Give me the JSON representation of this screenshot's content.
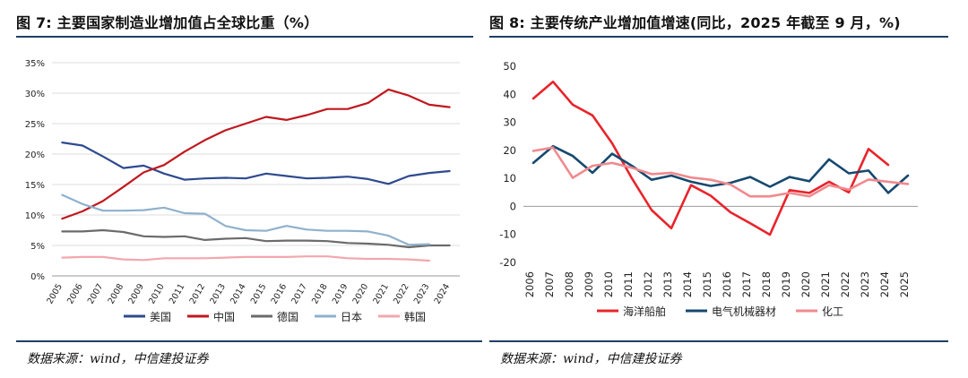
{
  "left": {
    "title": "图 7:  主要国家制造业增加值占全球比重（%）",
    "source": "数据来源：wind，中信建投证券",
    "chart_data": {
      "type": "line",
      "title": "主要国家制造业增加值占全球比重（%）",
      "x": [
        "2005",
        "2006",
        "2007",
        "2008",
        "2009",
        "2010",
        "2011",
        "2012",
        "2013",
        "2014",
        "2015",
        "2016",
        "2017",
        "2018",
        "2019",
        "2020",
        "2021",
        "2022",
        "2023",
        "2024"
      ],
      "y_ticks": [
        "0%",
        "5%",
        "10%",
        "15%",
        "20%",
        "25%",
        "30%",
        "35%"
      ],
      "ylim": [
        0,
        35
      ],
      "legend_position": "bottom",
      "series": [
        {
          "name": "美国",
          "color": "#2e4a8f",
          "values": [
            21.9,
            21.4,
            19.6,
            17.7,
            18.1,
            16.8,
            15.8,
            16.0,
            16.1,
            16.0,
            16.8,
            16.4,
            16.0,
            16.1,
            16.3,
            15.9,
            15.1,
            16.4,
            16.9,
            17.2
          ]
        },
        {
          "name": "中国",
          "color": "#c0181e",
          "values": [
            9.4,
            10.6,
            12.3,
            14.6,
            17.0,
            18.2,
            20.4,
            22.3,
            23.9,
            25.0,
            26.1,
            25.6,
            26.4,
            27.4,
            27.4,
            28.4,
            30.6,
            29.6,
            28.1,
            27.7
          ]
        },
        {
          "name": "德国",
          "color": "#6b6b6b",
          "values": [
            7.3,
            7.3,
            7.5,
            7.2,
            6.5,
            6.4,
            6.5,
            5.9,
            6.1,
            6.2,
            5.7,
            5.8,
            5.8,
            5.7,
            5.4,
            5.3,
            5.1,
            4.7,
            5.0,
            5.0
          ]
        },
        {
          "name": "日本",
          "color": "#8fb1cd",
          "values": [
            13.3,
            11.8,
            10.7,
            10.7,
            10.8,
            11.2,
            10.3,
            10.2,
            8.2,
            7.5,
            7.4,
            8.2,
            7.6,
            7.4,
            7.4,
            7.3,
            6.6,
            5.1,
            5.2,
            null
          ]
        },
        {
          "name": "韩国",
          "color": "#f2a7ae",
          "values": [
            3.0,
            3.1,
            3.1,
            2.7,
            2.6,
            2.9,
            2.9,
            2.9,
            3.0,
            3.1,
            3.1,
            3.1,
            3.2,
            3.2,
            2.9,
            2.8,
            2.8,
            2.7,
            2.5,
            null
          ]
        }
      ]
    }
  },
  "right": {
    "title": "图 8:  主要传统产业增加值增速(同比，2025 年截至 9 月，%)",
    "source": "数据来源：wind，中信建投证券",
    "chart_data": {
      "type": "line",
      "title": "主要传统产业增加值增速(同比，2025 年截至 9 月，%)",
      "x": [
        "2006",
        "2007",
        "2008",
        "2009",
        "2010",
        "2011",
        "2012",
        "2013",
        "2014",
        "2015",
        "2016",
        "2017",
        "2018",
        "2019",
        "2020",
        "2021",
        "2022",
        "2023",
        "2024",
        "2025"
      ],
      "y_ticks": [
        "-20",
        "-10",
        "0",
        "10",
        "20",
        "30",
        "40",
        "50"
      ],
      "ylim": [
        -20,
        50
      ],
      "legend_position": "bottom",
      "series": [
        {
          "name": "海洋船舶",
          "color": "#e8242b",
          "values": [
            38.5,
            44.5,
            36.3,
            32.5,
            22.5,
            10.0,
            -1.3,
            -7.8,
            7.6,
            3.8,
            -2.1,
            -6.0,
            -10.1,
            5.8,
            4.8,
            8.8,
            5.0,
            20.5,
            14.8,
            null
          ]
        },
        {
          "name": "电气机械器材",
          "color": "#16496f",
          "values": [
            15.5,
            21.5,
            18.0,
            12.0,
            18.8,
            14.5,
            9.5,
            11.0,
            8.8,
            7.3,
            8.4,
            10.5,
            7.0,
            10.5,
            9.0,
            16.8,
            11.8,
            12.8,
            4.8,
            11.0
          ]
        },
        {
          "name": "化工",
          "color": "#f08a8e",
          "values": [
            19.8,
            21.0,
            10.2,
            14.5,
            15.5,
            13.8,
            11.5,
            12.0,
            10.3,
            9.5,
            7.8,
            3.6,
            3.6,
            4.8,
            3.6,
            7.6,
            6.0,
            9.6,
            8.8,
            8.0
          ]
        }
      ]
    }
  }
}
